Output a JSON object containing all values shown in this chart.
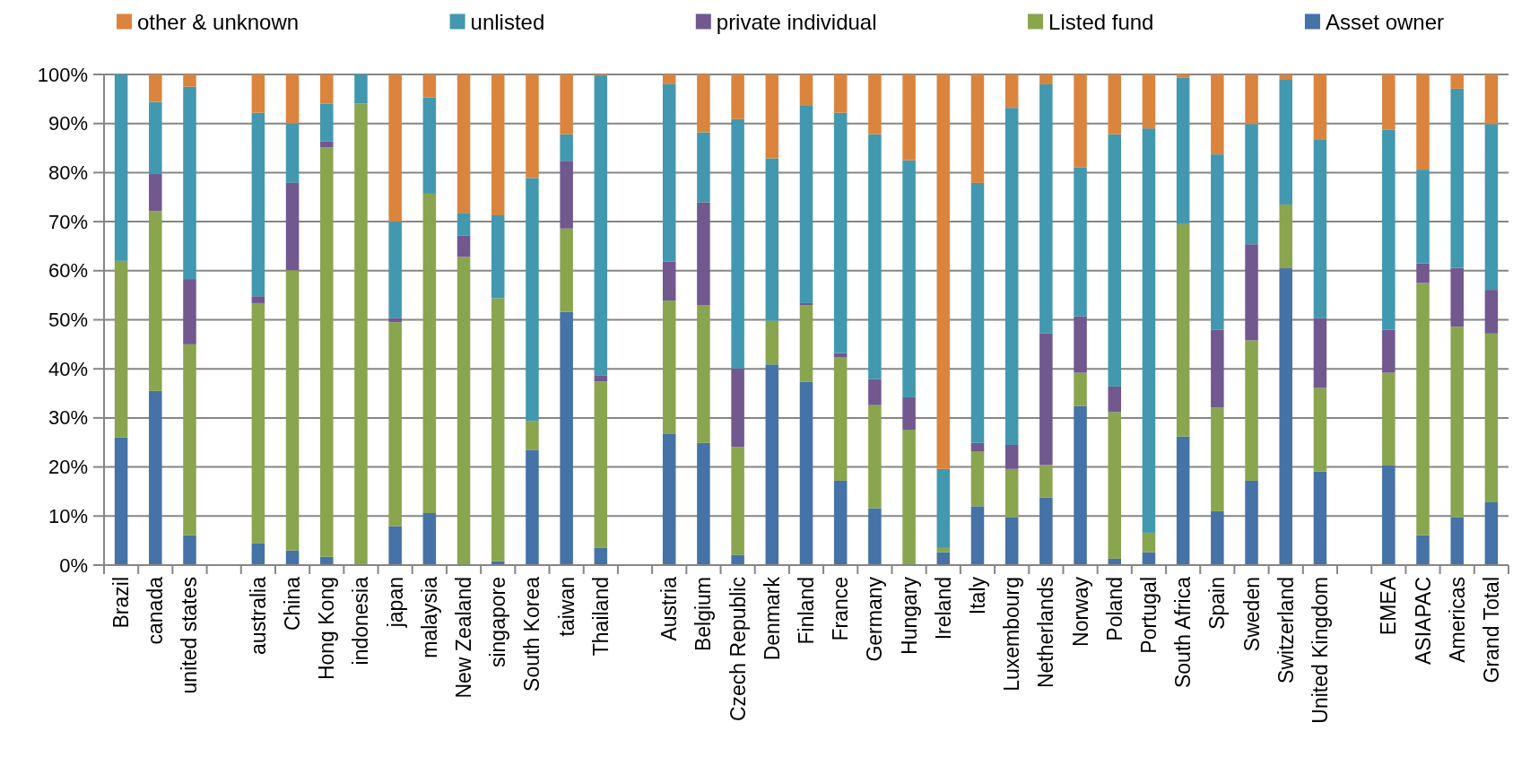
{
  "chart_data": {
    "type": "bar",
    "stacked": true,
    "grid": "y",
    "legend": "top",
    "categories": [
      "Brazil",
      "canada",
      "united states",
      null,
      "australia",
      "China",
      "Hong Kong",
      "indonesia",
      "japan",
      "malaysia",
      "New Zealand",
      "singapore",
      "South Korea",
      "taiwan",
      "Thailand",
      null,
      "Austria",
      "Belgium",
      "Czech Republic",
      "Denmark",
      "Finland",
      "France",
      "Germany",
      "Hungary",
      "Ireland",
      "Italy",
      "Luxembourg",
      "Netherlands",
      "Norway",
      "Poland",
      "Portugal",
      "South Africa",
      "Spain",
      "Sweden",
      "Switzerland",
      "United Kingdom",
      null,
      "EMEA",
      "ASIAPAC",
      "Americas",
      "Grand Total"
    ],
    "ylim": [
      0,
      100
    ],
    "yticks": [
      {
        "value": 0,
        "label": "0%"
      },
      {
        "value": 10,
        "label": "10%"
      },
      {
        "value": 20,
        "label": "20%"
      },
      {
        "value": 30,
        "label": "30%"
      },
      {
        "value": 40,
        "label": "40%"
      },
      {
        "value": 50,
        "label": "50%"
      },
      {
        "value": 60,
        "label": "60%"
      },
      {
        "value": 70,
        "label": "70%"
      },
      {
        "value": 80,
        "label": "80%"
      },
      {
        "value": 90,
        "label": "90%"
      },
      {
        "value": 100,
        "label": "100%"
      }
    ],
    "series": [
      {
        "name": "Asset owner",
        "color": "#4572a7",
        "values": [
          26,
          35.5,
          6.1,
          null,
          4.4,
          3,
          1.7,
          0,
          7.9,
          10.6,
          0,
          0.8,
          23.5,
          51.6,
          3.5,
          null,
          26.7,
          24.9,
          2.1,
          40.9,
          37.4,
          17.2,
          11.6,
          0,
          2.6,
          12,
          9.8,
          13.8,
          32.4,
          1.3,
          2.6,
          26.2,
          11,
          17.2,
          60.5,
          19.1,
          null,
          20.3,
          6.1,
          9.8,
          12.8
        ]
      },
      {
        "name": "Listed fund",
        "color": "#89a54e",
        "values": [
          36,
          36.7,
          38.9,
          null,
          49,
          57.1,
          83.4,
          94.1,
          41.6,
          65.1,
          62.8,
          53.6,
          5.9,
          17,
          33.9,
          null,
          27.2,
          28.1,
          22,
          8.9,
          15.6,
          25.1,
          21,
          27.6,
          0.9,
          11.1,
          9.8,
          6.6,
          6.8,
          29.9,
          4,
          43.3,
          21.1,
          28.6,
          13,
          17,
          null,
          18.9,
          51.4,
          38.8,
          34.4
        ]
      },
      {
        "name": "private individual",
        "color": "#71588f",
        "values": [
          0,
          7.5,
          13.3,
          null,
          1.4,
          17.8,
          1.3,
          0,
          0.9,
          0,
          4.4,
          0,
          0,
          13.8,
          1.3,
          null,
          8,
          20.9,
          16,
          0,
          0.4,
          0.9,
          5.3,
          6.6,
          0,
          1.8,
          4.9,
          26.8,
          11.5,
          5.2,
          0,
          0,
          15.9,
          19.6,
          0,
          14.2,
          null,
          8.8,
          4,
          12,
          8.9
        ]
      },
      {
        "name": "unlisted",
        "color": "#4198af",
        "values": [
          38,
          14.7,
          39.2,
          null,
          37.4,
          12.1,
          7.6,
          5.9,
          19.6,
          19.6,
          4.6,
          16.9,
          49.5,
          5.4,
          61.1,
          null,
          36.1,
          14.3,
          50.8,
          33.1,
          40.2,
          49,
          49.9,
          48.3,
          16.1,
          53,
          68.7,
          50.8,
          30.4,
          51.4,
          82.4,
          29.8,
          35.7,
          24.5,
          25.4,
          36.5,
          null,
          40.7,
          19.1,
          36.5,
          33.8
        ]
      },
      {
        "name": "other & unknown",
        "color": "#db843d",
        "values": [
          0,
          5.6,
          2.5,
          null,
          7.8,
          10,
          6,
          0,
          30,
          4.7,
          28.2,
          28.7,
          21.1,
          12.2,
          0.2,
          null,
          2,
          11.8,
          9.1,
          17.1,
          6.4,
          7.8,
          12.2,
          17.5,
          80.4,
          22.1,
          6.8,
          2,
          18.9,
          12.2,
          11,
          0.7,
          16.3,
          10.1,
          1.1,
          13.2,
          null,
          11.3,
          19.4,
          2.9,
          10.1
        ]
      }
    ]
  }
}
